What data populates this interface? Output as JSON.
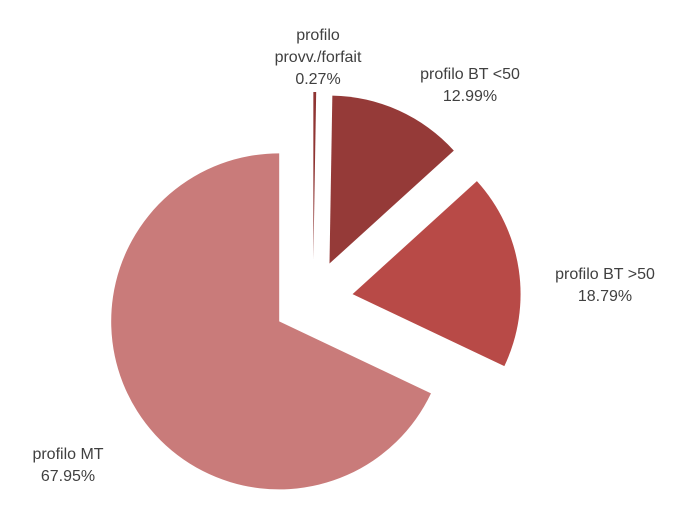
{
  "chart_data": {
    "type": "pie",
    "categories": [
      "profilo provv./forfait",
      "profilo BT <50",
      "profilo BT >50",
      "profilo MT"
    ],
    "values": [
      0.27,
      12.99,
      18.79,
      67.95
    ],
    "value_labels": [
      "0.27%",
      "12.99%",
      "18.79%",
      "67.95%"
    ],
    "colors": [
      "#8f3533",
      "#953a38",
      "#b84a47",
      "#c97b7a"
    ]
  }
}
